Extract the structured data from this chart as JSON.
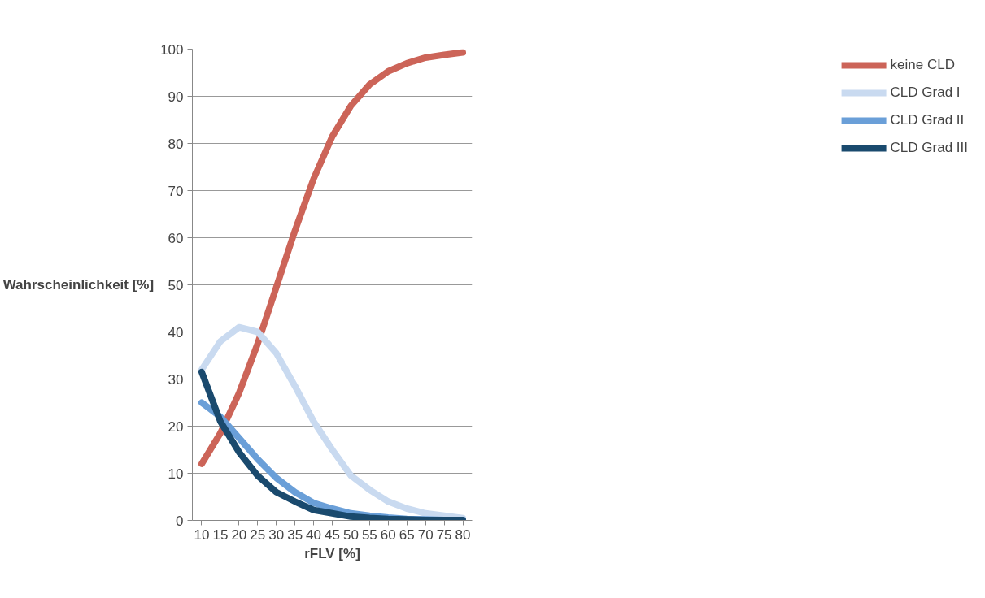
{
  "chart_data": {
    "type": "line",
    "xlabel": "rFLV [%]",
    "ylabel": "Wahrscheinlichkeit [%]",
    "categories": [
      "10",
      "15",
      "20",
      "25",
      "30",
      "35",
      "40",
      "45",
      "50",
      "55",
      "60",
      "65",
      "70",
      "75",
      "80"
    ],
    "ylim": [
      0,
      100
    ],
    "yticks": [
      0,
      10,
      20,
      30,
      40,
      50,
      60,
      70,
      80,
      90,
      100
    ],
    "grid": "y",
    "legend": "right",
    "marker": "none",
    "line_style": "solid",
    "series": [
      {
        "name": "keine CLD",
        "color": "#cc6458",
        "values": [
          12,
          18.5,
          27,
          37.5,
          49.5,
          61.5,
          72.5,
          81.5,
          88,
          92.5,
          95.3,
          97,
          98.2,
          98.8,
          99.3
        ]
      },
      {
        "name": "CLD Grad I",
        "color": "#c9daf0",
        "values": [
          32,
          38,
          41,
          40,
          35.5,
          28.5,
          21,
          15,
          9.5,
          6.5,
          4,
          2.5,
          1.5,
          1,
          0.5
        ]
      },
      {
        "name": "CLD Grad II",
        "color": "#6a9fd8",
        "values": [
          25,
          22,
          17.5,
          13,
          9,
          6,
          3.7,
          2.5,
          1.5,
          1,
          0.6,
          0.3,
          0.2,
          0.1,
          0.1
        ]
      },
      {
        "name": "CLD Grad III",
        "color": "#1a4a6e",
        "values": [
          31.5,
          21,
          14.5,
          9.5,
          6,
          4,
          2.2,
          1.5,
          0.8,
          0.5,
          0.3,
          0.2,
          0.1,
          0.1,
          0.1
        ]
      }
    ]
  }
}
